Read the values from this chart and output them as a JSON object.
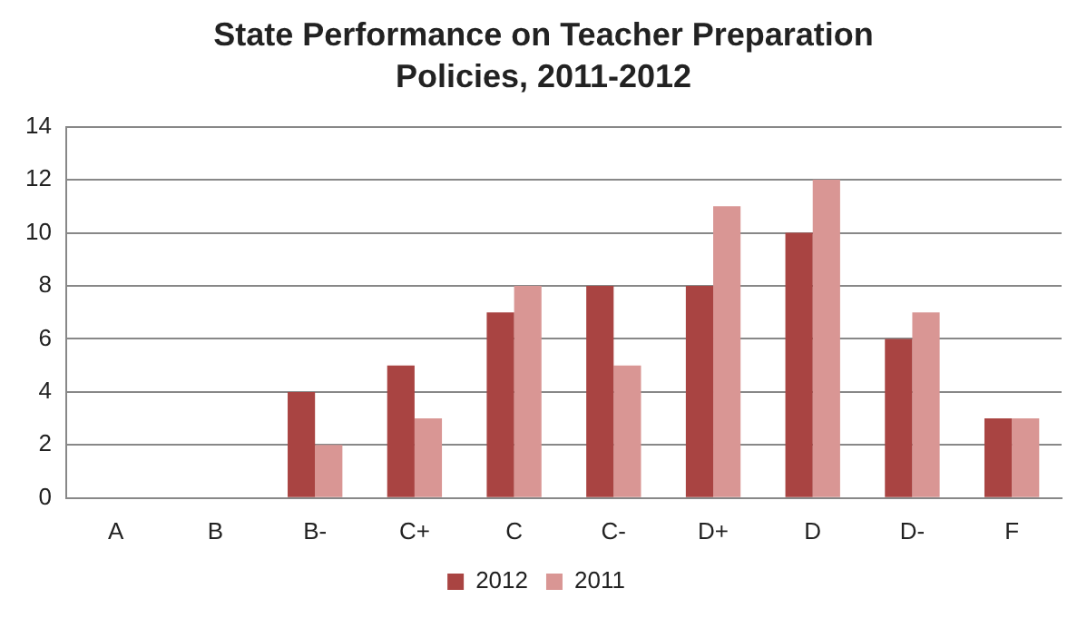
{
  "chart_data": {
    "type": "bar",
    "title": "State Performance on Teacher Preparation Policies, 2011-2012",
    "categories": [
      "A",
      "B",
      "B-",
      "C+",
      "C",
      "C-",
      "D+",
      "D",
      "D-",
      "F"
    ],
    "series": [
      {
        "name": "2012",
        "color": "#a94442",
        "values": [
          0,
          0,
          4,
          5,
          7,
          8,
          8,
          10,
          6,
          3
        ]
      },
      {
        "name": "2011",
        "color": "#d99694",
        "values": [
          0,
          0,
          2,
          3,
          8,
          5,
          11,
          12,
          7,
          3
        ]
      }
    ],
    "ylim": [
      0,
      14
    ],
    "yticks": [
      0,
      2,
      4,
      6,
      8,
      10,
      12,
      14
    ],
    "grid": "y",
    "legend": "bottom"
  }
}
